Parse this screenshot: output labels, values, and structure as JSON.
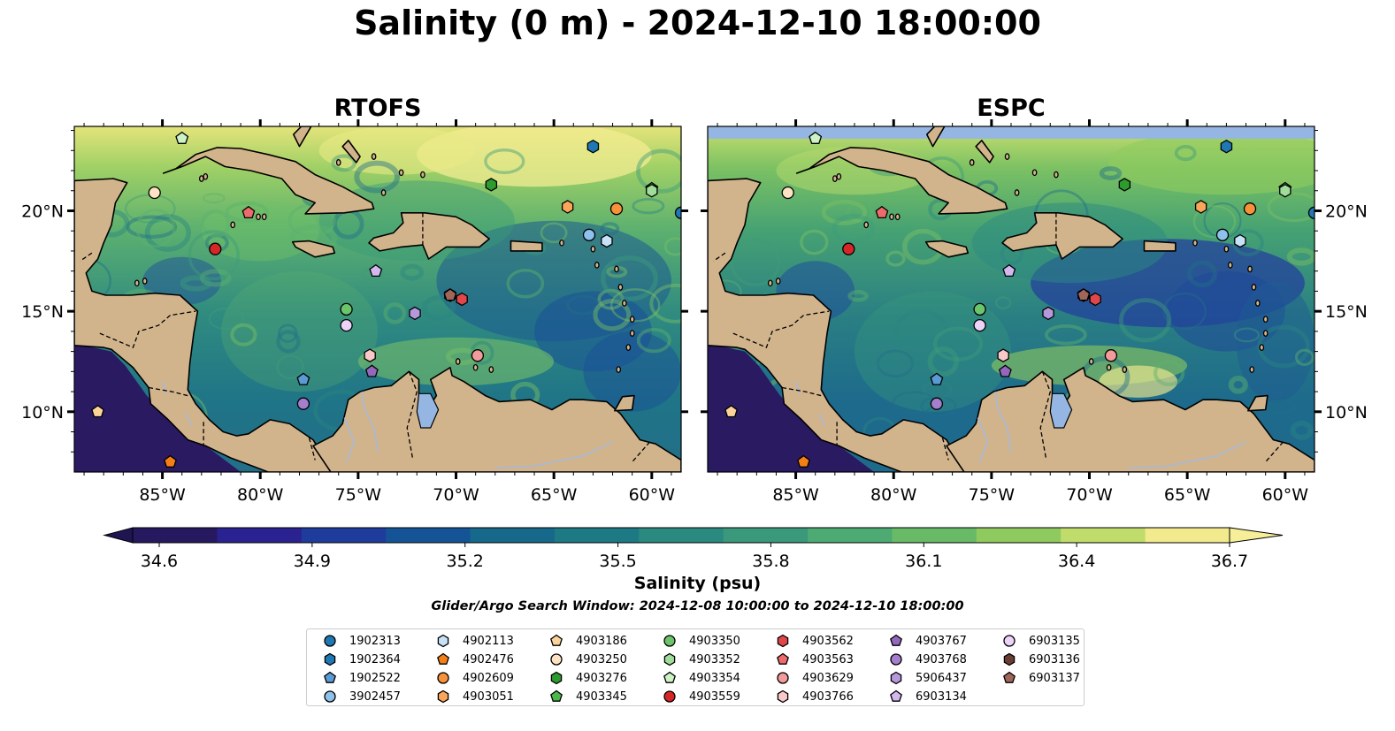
{
  "title": "Salinity (0 m) - 2024-12-10 18:00:00",
  "panels": [
    {
      "title": "RTOFS",
      "ocean_style": "rtofs"
    },
    {
      "title": "ESPC",
      "ocean_style": "espc"
    }
  ],
  "map": {
    "lon_range": [
      -89.5,
      -58.5
    ],
    "lat_range": [
      7,
      24.2
    ],
    "lon_ticks": [
      {
        "value": -85,
        "label": "85°W"
      },
      {
        "value": -80,
        "label": "80°W"
      },
      {
        "value": -75,
        "label": "75°W"
      },
      {
        "value": -70,
        "label": "70°W"
      },
      {
        "value": -65,
        "label": "65°W"
      },
      {
        "value": -60,
        "label": "60°W"
      }
    ],
    "lat_ticks": [
      {
        "value": 20,
        "label": "20°N"
      },
      {
        "value": 15,
        "label": "15°N"
      },
      {
        "value": 10,
        "label": "10°N"
      }
    ],
    "colors": {
      "land": "#d2b48c",
      "lake": "#95b6e3",
      "pacific": "#2a1a62"
    }
  },
  "colorbar": {
    "label": "Salinity (psu)",
    "min": 34.6,
    "max": 36.7,
    "ticks": [
      "34.6",
      "34.9",
      "35.2",
      "35.5",
      "35.8",
      "36.1",
      "36.4",
      "36.7"
    ],
    "colors": [
      "#26195f",
      "#2a2290",
      "#1f3b9c",
      "#145496",
      "#16698b",
      "#1d7a85",
      "#2a8a80",
      "#3a997a",
      "#4caa72",
      "#68ba67",
      "#8fca5e",
      "#c0dc6a",
      "#f3e98d"
    ]
  },
  "search_window": "Glider/Argo Search Window: 2024-12-08 10:00:00 to 2024-12-10 18:00:00",
  "floats": [
    {
      "id": "1902313",
      "shape": "circle",
      "color": "#1f77b4",
      "lon": -58.5,
      "lat": 19.9
    },
    {
      "id": "1902364",
      "shape": "hexagon",
      "color": "#1f77b4",
      "lon": -63.0,
      "lat": 23.2
    },
    {
      "id": "1902522",
      "shape": "pentagon",
      "color": "#5b9bd5",
      "lon": -77.8,
      "lat": 11.6
    },
    {
      "id": "3902457",
      "shape": "circle",
      "color": "#8ec1ec",
      "lon": -63.2,
      "lat": 18.8
    },
    {
      "id": "4902113",
      "shape": "hexagon",
      "color": "#c7e2f7",
      "lon": -62.3,
      "lat": 18.5
    },
    {
      "id": "4902476",
      "shape": "pentagon",
      "color": "#f57f17",
      "lon": -84.6,
      "lat": 7.5
    },
    {
      "id": "4902609",
      "shape": "circle",
      "color": "#f7923a",
      "lon": -61.8,
      "lat": 20.1
    },
    {
      "id": "4903051",
      "shape": "hexagon",
      "color": "#f9a65a",
      "lon": -64.3,
      "lat": 20.2
    },
    {
      "id": "4903186",
      "shape": "pentagon",
      "color": "#fbd49b",
      "lon": -88.3,
      "lat": 10.0
    },
    {
      "id": "4903250",
      "shape": "circle",
      "color": "#fde3c4",
      "lon": -85.4,
      "lat": 20.9
    },
    {
      "id": "4903276",
      "shape": "hexagon",
      "color": "#2e9b2e",
      "lon": -68.2,
      "lat": 21.3
    },
    {
      "id": "4903345",
      "shape": "pentagon",
      "color": "#4cb84c",
      "lon": -60.0,
      "lat": 21.1
    },
    {
      "id": "4903350",
      "shape": "circle",
      "color": "#6cc46c",
      "lon": -75.6,
      "lat": 15.1
    },
    {
      "id": "4903352",
      "shape": "hexagon",
      "color": "#a0dd9a",
      "lon": -60.0,
      "lat": 21.0
    },
    {
      "id": "4903354",
      "shape": "pentagon",
      "color": "#cdf2c6",
      "lon": -84.0,
      "lat": 23.6
    },
    {
      "id": "4903559",
      "shape": "circle",
      "color": "#d62728",
      "lon": -82.3,
      "lat": 18.1
    },
    {
      "id": "4903562",
      "shape": "hexagon",
      "color": "#e0474a",
      "lon": -69.7,
      "lat": 15.6
    },
    {
      "id": "4903563",
      "shape": "pentagon",
      "color": "#ee6b6b",
      "lon": -80.6,
      "lat": 19.9
    },
    {
      "id": "4903629",
      "shape": "circle",
      "color": "#f39a9a",
      "lon": -68.9,
      "lat": 12.8
    },
    {
      "id": "4903766",
      "shape": "hexagon",
      "color": "#f9c8c8",
      "lon": -74.4,
      "lat": 12.8
    },
    {
      "id": "4903767",
      "shape": "pentagon",
      "color": "#9467bd",
      "lon": -74.3,
      "lat": 12.0
    },
    {
      "id": "4903768",
      "shape": "circle",
      "color": "#a57fce",
      "lon": -77.8,
      "lat": 10.4
    },
    {
      "id": "5906437",
      "shape": "hexagon",
      "color": "#b898dc",
      "lon": -72.1,
      "lat": 14.9
    },
    {
      "id": "6903134",
      "shape": "pentagon",
      "color": "#d2b8ee",
      "lon": -74.1,
      "lat": 17.0
    },
    {
      "id": "6903135",
      "shape": "circle",
      "color": "#ecd4f8",
      "lon": -75.6,
      "lat": 14.3
    },
    {
      "id": "6903136",
      "shape": "hexagon",
      "color": "#6b3e33",
      "lon": -70.3,
      "lat": 15.8
    },
    {
      "id": "6903137",
      "shape": "pentagon",
      "color": "#a0665a",
      "lon": -70.3,
      "lat": 15.8
    }
  ]
}
